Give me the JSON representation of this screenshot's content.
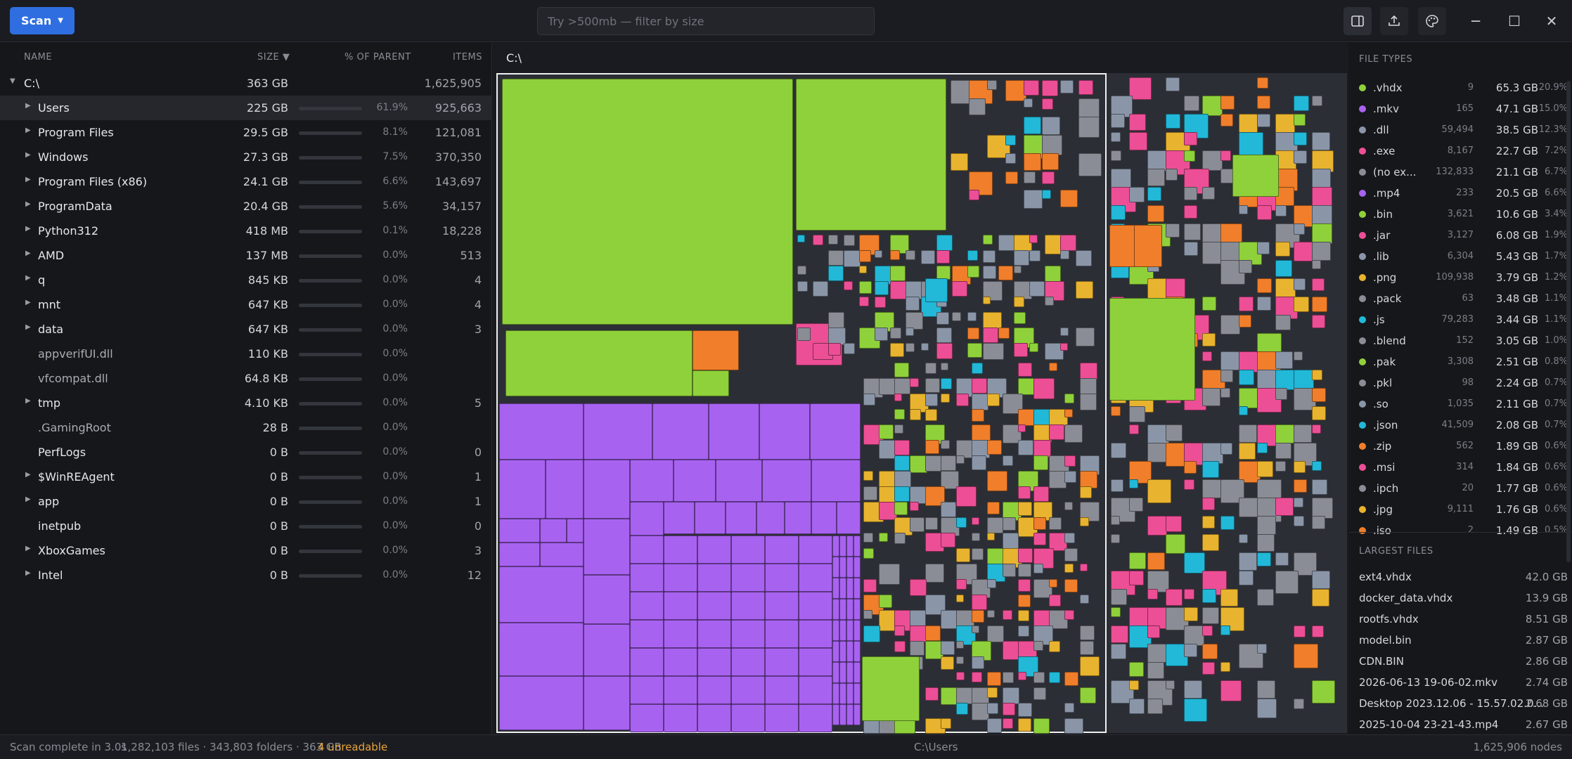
{
  "toolbar": {
    "scan_label": "Scan",
    "search_placeholder": "Try >500mb — filter by size"
  },
  "tree": {
    "columns": {
      "name": "NAME",
      "size": "SIZE ▼",
      "pct": "% OF PARENT",
      "items": "ITEMS"
    },
    "root": {
      "name": "C:\\",
      "size": "363 GB",
      "items": "1,625,905"
    },
    "rows": [
      {
        "name": "Users",
        "size": "225 GB",
        "pct": "61.9%",
        "items": "925,663",
        "fill": 0.619,
        "folder": true
      },
      {
        "name": "Program Files",
        "size": "29.5 GB",
        "pct": "8.1%",
        "items": "121,081",
        "fill": 0.081,
        "folder": true
      },
      {
        "name": "Windows",
        "size": "27.3 GB",
        "pct": "7.5%",
        "items": "370,350",
        "fill": 0.075,
        "folder": true
      },
      {
        "name": "Program Files (x86)",
        "size": "24.1 GB",
        "pct": "6.6%",
        "items": "143,697",
        "fill": 0.066,
        "folder": true
      },
      {
        "name": "ProgramData",
        "size": "20.4 GB",
        "pct": "5.6%",
        "items": "34,157",
        "fill": 0.056,
        "folder": true
      },
      {
        "name": "Python312",
        "size": "418 MB",
        "pct": "0.1%",
        "items": "18,228",
        "fill": 0.001,
        "folder": true
      },
      {
        "name": "AMD",
        "size": "137 MB",
        "pct": "0.0%",
        "items": "513",
        "fill": 0,
        "folder": true
      },
      {
        "name": "q",
        "size": "845 KB",
        "pct": "0.0%",
        "items": "4",
        "fill": 0,
        "folder": true
      },
      {
        "name": "mnt",
        "size": "647 KB",
        "pct": "0.0%",
        "items": "4",
        "fill": 0,
        "folder": true
      },
      {
        "name": "data",
        "size": "647 KB",
        "pct": "0.0%",
        "items": "3",
        "fill": 0,
        "folder": true
      },
      {
        "name": "appverifUI.dll",
        "size": "110 KB",
        "pct": "0.0%",
        "items": "",
        "fill": 0,
        "folder": false
      },
      {
        "name": "vfcompat.dll",
        "size": "64.8 KB",
        "pct": "0.0%",
        "items": "",
        "fill": 0,
        "folder": false
      },
      {
        "name": "tmp",
        "size": "4.10 KB",
        "pct": "0.0%",
        "items": "5",
        "fill": 0,
        "folder": true
      },
      {
        "name": ".GamingRoot",
        "size": "28 B",
        "pct": "0.0%",
        "items": "",
        "fill": 0,
        "folder": false
      },
      {
        "name": "PerfLogs",
        "size": "0 B",
        "pct": "0.0%",
        "items": "0",
        "fill": 0,
        "folder": true,
        "noarrow": true
      },
      {
        "name": "$WinREAgent",
        "size": "0 B",
        "pct": "0.0%",
        "items": "1",
        "fill": 0,
        "folder": true
      },
      {
        "name": "app",
        "size": "0 B",
        "pct": "0.0%",
        "items": "1",
        "fill": 0,
        "folder": true
      },
      {
        "name": "inetpub",
        "size": "0 B",
        "pct": "0.0%",
        "items": "0",
        "fill": 0,
        "folder": true,
        "noarrow": true
      },
      {
        "name": "XboxGames",
        "size": "0 B",
        "pct": "0.0%",
        "items": "3",
        "fill": 0,
        "folder": true
      },
      {
        "name": "Intel",
        "size": "0 B",
        "pct": "0.0%",
        "items": "12",
        "fill": 0,
        "folder": true
      }
    ]
  },
  "treemap": {
    "breadcrumb": "C:\\"
  },
  "file_types": {
    "heading": "FILE TYPES",
    "items": [
      {
        "ext": ".vhdx",
        "count": "9",
        "size": "65.3 GB",
        "pct": "20.9%",
        "color": "#8fd13a"
      },
      {
        "ext": ".mkv",
        "count": "165",
        "size": "47.1 GB",
        "pct": "15.0%",
        "color": "#a862f0"
      },
      {
        "ext": ".dll",
        "count": "59,494",
        "size": "38.5 GB",
        "pct": "12.3%",
        "color": "#8a96a8"
      },
      {
        "ext": ".exe",
        "count": "8,167",
        "size": "22.7 GB",
        "pct": "7.2%",
        "color": "#ec4f96"
      },
      {
        "ext": "(no ex...",
        "count": "132,833",
        "size": "21.1 GB",
        "pct": "6.7%",
        "color": "#8a8d95"
      },
      {
        "ext": ".mp4",
        "count": "233",
        "size": "20.5 GB",
        "pct": "6.6%",
        "color": "#a862f0"
      },
      {
        "ext": ".bin",
        "count": "3,621",
        "size": "10.6 GB",
        "pct": "3.4%",
        "color": "#8fd13a"
      },
      {
        "ext": ".jar",
        "count": "3,127",
        "size": "6.08 GB",
        "pct": "1.9%",
        "color": "#ec4f96"
      },
      {
        "ext": ".lib",
        "count": "6,304",
        "size": "5.43 GB",
        "pct": "1.7%",
        "color": "#8a96a8"
      },
      {
        "ext": ".png",
        "count": "109,938",
        "size": "3.79 GB",
        "pct": "1.2%",
        "color": "#e8b32e"
      },
      {
        "ext": ".pack",
        "count": "63",
        "size": "3.48 GB",
        "pct": "1.1%",
        "color": "#8a8d95"
      },
      {
        "ext": ".js",
        "count": "79,283",
        "size": "3.44 GB",
        "pct": "1.1%",
        "color": "#22b8d8"
      },
      {
        "ext": ".blend",
        "count": "152",
        "size": "3.05 GB",
        "pct": "1.0%",
        "color": "#8a8d95"
      },
      {
        "ext": ".pak",
        "count": "3,308",
        "size": "2.51 GB",
        "pct": "0.8%",
        "color": "#8fd13a"
      },
      {
        "ext": ".pkl",
        "count": "98",
        "size": "2.24 GB",
        "pct": "0.7%",
        "color": "#8a8d95"
      },
      {
        "ext": ".so",
        "count": "1,035",
        "size": "2.11 GB",
        "pct": "0.7%",
        "color": "#8a96a8"
      },
      {
        "ext": ".json",
        "count": "41,509",
        "size": "2.08 GB",
        "pct": "0.7%",
        "color": "#22b8d8"
      },
      {
        "ext": ".zip",
        "count": "562",
        "size": "1.89 GB",
        "pct": "0.6%",
        "color": "#f07e2a"
      },
      {
        "ext": ".msi",
        "count": "314",
        "size": "1.84 GB",
        "pct": "0.6%",
        "color": "#ec4f96"
      },
      {
        "ext": ".ipch",
        "count": "20",
        "size": "1.77 GB",
        "pct": "0.6%",
        "color": "#8a8d95"
      },
      {
        "ext": ".jpg",
        "count": "9,111",
        "size": "1.76 GB",
        "pct": "0.6%",
        "color": "#e8b32e"
      },
      {
        "ext": ".iso",
        "count": "2",
        "size": "1.49 GB",
        "pct": "0.5%",
        "color": "#f07e2a"
      }
    ]
  },
  "largest_files": {
    "heading": "LARGEST FILES",
    "items": [
      {
        "name": "ext4.vhdx",
        "size": "42.0 GB"
      },
      {
        "name": "docker_data.vhdx",
        "size": "13.9 GB"
      },
      {
        "name": "rootfs.vhdx",
        "size": "8.51 GB"
      },
      {
        "name": "model.bin",
        "size": "2.87 GB"
      },
      {
        "name": "CDN.BIN",
        "size": "2.86 GB"
      },
      {
        "name": "2026-06-13 19-06-02.mkv",
        "size": "2.74 GB"
      },
      {
        "name": "Desktop 2023.12.06 - 15.57.02.0...",
        "size": "2.68 GB"
      },
      {
        "name": "2025-10-04 23-21-43.mp4",
        "size": "2.67 GB"
      }
    ]
  },
  "status": {
    "left": "Scan complete in 3.0s",
    "counts": "1,282,103 files · 343,803 folders · 363 GB",
    "unreadable": "4 unreadable",
    "center": "C:\\Users",
    "right": "1,625,906 nodes"
  }
}
